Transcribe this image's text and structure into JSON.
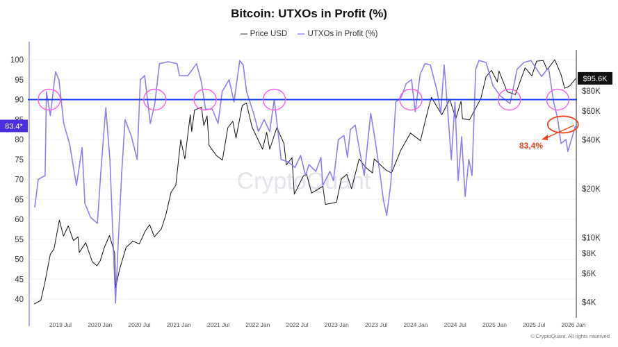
{
  "chart_data": {
    "type": "line",
    "title": "Bitcoin: UTXOs in Profit (%)",
    "legend_position": "top",
    "grid": true,
    "x_ticks": [
      "2019 Jul",
      "2020 Jan",
      "2020 Jul",
      "2021 Jan",
      "2021 Jul",
      "2022 Jan",
      "2022 Jul",
      "2023 Jan",
      "2023 Jul",
      "2024 Jan",
      "2024 Jul",
      "2025 Jan",
      "2025 Jul",
      "2026 Jan"
    ],
    "y_left": {
      "ticks": [
        100,
        95,
        90,
        85,
        80,
        75,
        70,
        65,
        60,
        55,
        50,
        45,
        40
      ],
      "labels": [
        "100",
        "95",
        "90",
        "85",
        "80",
        "75",
        "70",
        "65",
        "60",
        "55",
        "50",
        "45",
        "40"
      ],
      "range": [
        38,
        101
      ]
    },
    "y_right": {
      "scale": "log",
      "ticks": [
        80000,
        60000,
        40000,
        20000,
        10000,
        8000,
        6000,
        4000
      ],
      "labels": [
        "$80K",
        "$60K",
        "$40K",
        "$20K",
        "$10K",
        "$8K",
        "$6K",
        "$4K"
      ]
    },
    "series": [
      {
        "name": "Price USD",
        "axis": "right",
        "color": "#111111",
        "points": [
          [
            "2019-03-01",
            3900
          ],
          [
            "2019-04-01",
            4100
          ],
          [
            "2019-04-20",
            5300
          ],
          [
            "2019-05-15",
            7900
          ],
          [
            "2019-06-01",
            8500
          ],
          [
            "2019-06-26",
            12800
          ],
          [
            "2019-07-15",
            10200
          ],
          [
            "2019-08-06",
            11800
          ],
          [
            "2019-08-30",
            9600
          ],
          [
            "2019-09-20",
            10100
          ],
          [
            "2019-09-26",
            8100
          ],
          [
            "2019-10-26",
            9300
          ],
          [
            "2019-11-25",
            7100
          ],
          [
            "2019-12-17",
            6700
          ],
          [
            "2020-01-01",
            7200
          ],
          [
            "2020-01-20",
            8700
          ],
          [
            "2020-02-13",
            10300
          ],
          [
            "2020-03-08",
            8000
          ],
          [
            "2020-03-12",
            4900
          ],
          [
            "2020-03-31",
            6400
          ],
          [
            "2020-04-30",
            8700
          ],
          [
            "2020-05-31",
            9500
          ],
          [
            "2020-06-30",
            9150
          ],
          [
            "2020-07-28",
            11000
          ],
          [
            "2020-08-17",
            12000
          ],
          [
            "2020-09-08",
            10100
          ],
          [
            "2020-10-10",
            11300
          ],
          [
            "2020-10-31",
            13800
          ],
          [
            "2020-11-24",
            19000
          ],
          [
            "2020-12-16",
            21000
          ],
          [
            "2021-01-08",
            40000
          ],
          [
            "2021-01-27",
            30500
          ],
          [
            "2021-02-21",
            57000
          ],
          [
            "2021-02-28",
            45000
          ],
          [
            "2021-03-13",
            61000
          ],
          [
            "2021-04-14",
            63500
          ],
          [
            "2021-04-25",
            49000
          ],
          [
            "2021-05-10",
            56000
          ],
          [
            "2021-05-19",
            37000
          ],
          [
            "2021-06-22",
            32000
          ],
          [
            "2021-07-20",
            30000
          ],
          [
            "2021-08-14",
            47500
          ],
          [
            "2021-09-06",
            52000
          ],
          [
            "2021-09-21",
            41000
          ],
          [
            "2021-10-20",
            65000
          ],
          [
            "2021-11-08",
            67500
          ],
          [
            "2021-12-04",
            48000
          ],
          [
            "2022-01-22",
            35000
          ],
          [
            "2022-02-10",
            44500
          ],
          [
            "2022-02-24",
            35000
          ],
          [
            "2022-03-29",
            47500
          ],
          [
            "2022-05-01",
            38000
          ],
          [
            "2022-05-12",
            28000
          ],
          [
            "2022-06-07",
            31000
          ],
          [
            "2022-06-18",
            18500
          ],
          [
            "2022-07-30",
            24000
          ],
          [
            "2022-08-14",
            24500
          ],
          [
            "2022-09-06",
            18800
          ],
          [
            "2022-10-28",
            20700
          ],
          [
            "2022-11-09",
            16000
          ],
          [
            "2022-12-30",
            16500
          ],
          [
            "2023-01-22",
            23000
          ],
          [
            "2023-02-16",
            24500
          ],
          [
            "2023-03-10",
            20000
          ],
          [
            "2023-04-14",
            30500
          ],
          [
            "2023-05-15",
            27000
          ],
          [
            "2023-06-15",
            25000
          ],
          [
            "2023-06-23",
            30500
          ],
          [
            "2023-08-17",
            26000
          ],
          [
            "2023-09-11",
            25000
          ],
          [
            "2023-10-24",
            34500
          ],
          [
            "2023-12-08",
            44000
          ],
          [
            "2024-01-23",
            39500
          ],
          [
            "2024-02-28",
            62000
          ],
          [
            "2024-03-14",
            73000
          ],
          [
            "2024-05-01",
            57000
          ],
          [
            "2024-06-07",
            71000
          ],
          [
            "2024-07-05",
            54000
          ],
          [
            "2024-07-29",
            69000
          ],
          [
            "2024-08-05",
            54000
          ],
          [
            "2024-09-06",
            53000
          ],
          [
            "2024-10-29",
            72000
          ],
          [
            "2024-11-22",
            98000
          ],
          [
            "2024-12-17",
            107000
          ],
          [
            "2025-01-13",
            91000
          ],
          [
            "2025-01-21",
            106000
          ],
          [
            "2025-02-28",
            79000
          ],
          [
            "2025-04-07",
            76000
          ],
          [
            "2025-05-22",
            111000
          ],
          [
            "2025-06-22",
            99000
          ],
          [
            "2025-07-14",
            122000
          ],
          [
            "2025-08-14",
            123000
          ],
          [
            "2025-09-01",
            108000
          ],
          [
            "2025-10-06",
            124500
          ],
          [
            "2025-11-04",
            101000
          ],
          [
            "2025-11-21",
            83000
          ],
          [
            "2025-12-15",
            86000
          ],
          [
            "2026-01-12",
            95600
          ]
        ]
      },
      {
        "name": "UTXOs in Profit (%)",
        "axis": "left",
        "color": "#7b68ee",
        "points": [
          [
            "2019-03-04",
            63
          ],
          [
            "2019-03-20",
            70
          ],
          [
            "2019-04-21",
            71
          ],
          [
            "2019-04-27",
            92
          ],
          [
            "2019-05-15",
            86
          ],
          [
            "2019-06-08",
            97
          ],
          [
            "2019-06-24",
            95
          ],
          [
            "2019-07-16",
            84
          ],
          [
            "2019-08-12",
            79
          ],
          [
            "2019-09-13",
            68.5
          ],
          [
            "2019-10-09",
            78
          ],
          [
            "2019-10-22",
            64
          ],
          [
            "2019-11-17",
            60.5
          ],
          [
            "2019-12-19",
            59
          ],
          [
            "2020-01-04",
            72
          ],
          [
            "2020-01-27",
            88
          ],
          [
            "2020-02-15",
            75
          ],
          [
            "2020-03-12",
            39
          ],
          [
            "2020-03-25",
            54.6
          ],
          [
            "2020-04-10",
            72
          ],
          [
            "2020-04-25",
            85
          ],
          [
            "2020-05-25",
            80.7
          ],
          [
            "2020-06-20",
            75
          ],
          [
            "2020-07-05",
            95
          ],
          [
            "2020-07-25",
            96
          ],
          [
            "2020-08-20",
            84
          ],
          [
            "2020-09-10",
            89
          ],
          [
            "2020-10-01",
            99
          ],
          [
            "2020-11-10",
            99.5
          ],
          [
            "2020-12-22",
            99
          ],
          [
            "2021-01-02",
            96
          ],
          [
            "2021-02-10",
            96
          ],
          [
            "2021-03-22",
            99
          ],
          [
            "2021-04-13",
            94.6
          ],
          [
            "2021-05-03",
            87.6
          ],
          [
            "2021-06-03",
            87.6
          ],
          [
            "2021-06-30",
            84
          ],
          [
            "2021-07-19",
            92
          ],
          [
            "2021-08-20",
            95
          ],
          [
            "2021-09-12",
            89.4
          ],
          [
            "2021-10-08",
            99.8
          ],
          [
            "2021-10-24",
            98.7
          ],
          [
            "2021-11-09",
            92
          ],
          [
            "2021-12-11",
            86.6
          ],
          [
            "2022-01-03",
            82
          ],
          [
            "2022-01-29",
            85
          ],
          [
            "2022-02-24",
            82
          ],
          [
            "2022-03-17",
            90
          ],
          [
            "2022-04-02",
            82.5
          ],
          [
            "2022-04-18",
            75
          ],
          [
            "2022-05-20",
            74.4
          ],
          [
            "2022-06-21",
            73
          ],
          [
            "2022-07-17",
            76
          ],
          [
            "2022-08-09",
            71
          ],
          [
            "2022-08-25",
            73.7
          ],
          [
            "2022-09-26",
            72
          ],
          [
            "2022-10-19",
            75.5
          ],
          [
            "2022-10-28",
            68.5
          ],
          [
            "2022-11-30",
            72
          ],
          [
            "2022-12-16",
            69.7
          ],
          [
            "2023-01-08",
            80
          ],
          [
            "2023-02-03",
            81
          ],
          [
            "2023-02-19",
            75.5
          ],
          [
            "2023-03-05",
            82.5
          ],
          [
            "2023-03-27",
            83.6
          ],
          [
            "2023-04-22",
            75.5
          ],
          [
            "2023-05-08",
            71
          ],
          [
            "2023-06-07",
            86.6
          ],
          [
            "2023-06-25",
            80.7
          ],
          [
            "2023-07-21",
            71
          ],
          [
            "2023-08-04",
            65
          ],
          [
            "2023-08-20",
            61
          ],
          [
            "2023-09-08",
            69
          ],
          [
            "2023-10-01",
            89.4
          ],
          [
            "2023-10-26",
            90.6
          ],
          [
            "2023-11-18",
            94
          ],
          [
            "2023-12-13",
            95
          ],
          [
            "2023-12-30",
            87
          ],
          [
            "2024-01-22",
            96.4
          ],
          [
            "2024-02-13",
            99
          ],
          [
            "2024-03-09",
            98.7
          ],
          [
            "2024-04-10",
            92
          ],
          [
            "2024-04-26",
            86.6
          ],
          [
            "2024-05-12",
            98.7
          ],
          [
            "2024-05-28",
            87.6
          ],
          [
            "2024-06-14",
            75
          ],
          [
            "2024-07-01",
            89.4
          ],
          [
            "2024-07-16",
            69.7
          ],
          [
            "2024-08-01",
            80.7
          ],
          [
            "2024-08-17",
            65.7
          ],
          [
            "2024-09-03",
            75
          ],
          [
            "2024-09-18",
            71
          ],
          [
            "2024-10-05",
            97.6
          ],
          [
            "2024-10-20",
            99.8
          ],
          [
            "2024-11-22",
            99.3
          ],
          [
            "2024-12-24",
            93.5
          ],
          [
            "2025-01-26",
            91
          ],
          [
            "2025-03-13",
            89
          ],
          [
            "2025-04-15",
            97.6
          ],
          [
            "2025-05-16",
            99.3
          ],
          [
            "2025-06-18",
            99.8
          ],
          [
            "2025-08-06",
            95.8
          ],
          [
            "2025-09-07",
            98
          ],
          [
            "2025-10-01",
            89.4
          ],
          [
            "2025-10-19",
            85.4
          ],
          [
            "2025-11-04",
            79
          ],
          [
            "2025-11-27",
            80
          ],
          [
            "2025-12-06",
            77
          ],
          [
            "2026-01-10",
            83.4
          ]
        ]
      }
    ],
    "reference_line": {
      "value": 90,
      "color": "#1a3cff"
    },
    "highlight_circles_at": [
      "2019-05-10",
      "2020-09-10",
      "2021-05-01",
      "2022-03-17",
      "2023-12-10",
      "2025-03-10",
      "2025-10-20"
    ],
    "highlight_color": "#ff5cf0",
    "annotation": {
      "text": "83,4%",
      "color": "#f0421e"
    },
    "last_value_left": "83.4*",
    "last_value_right": "$95.6K",
    "watermark": "CryptoQuant",
    "footer": "© CryptoQuant. All rights reserved"
  }
}
